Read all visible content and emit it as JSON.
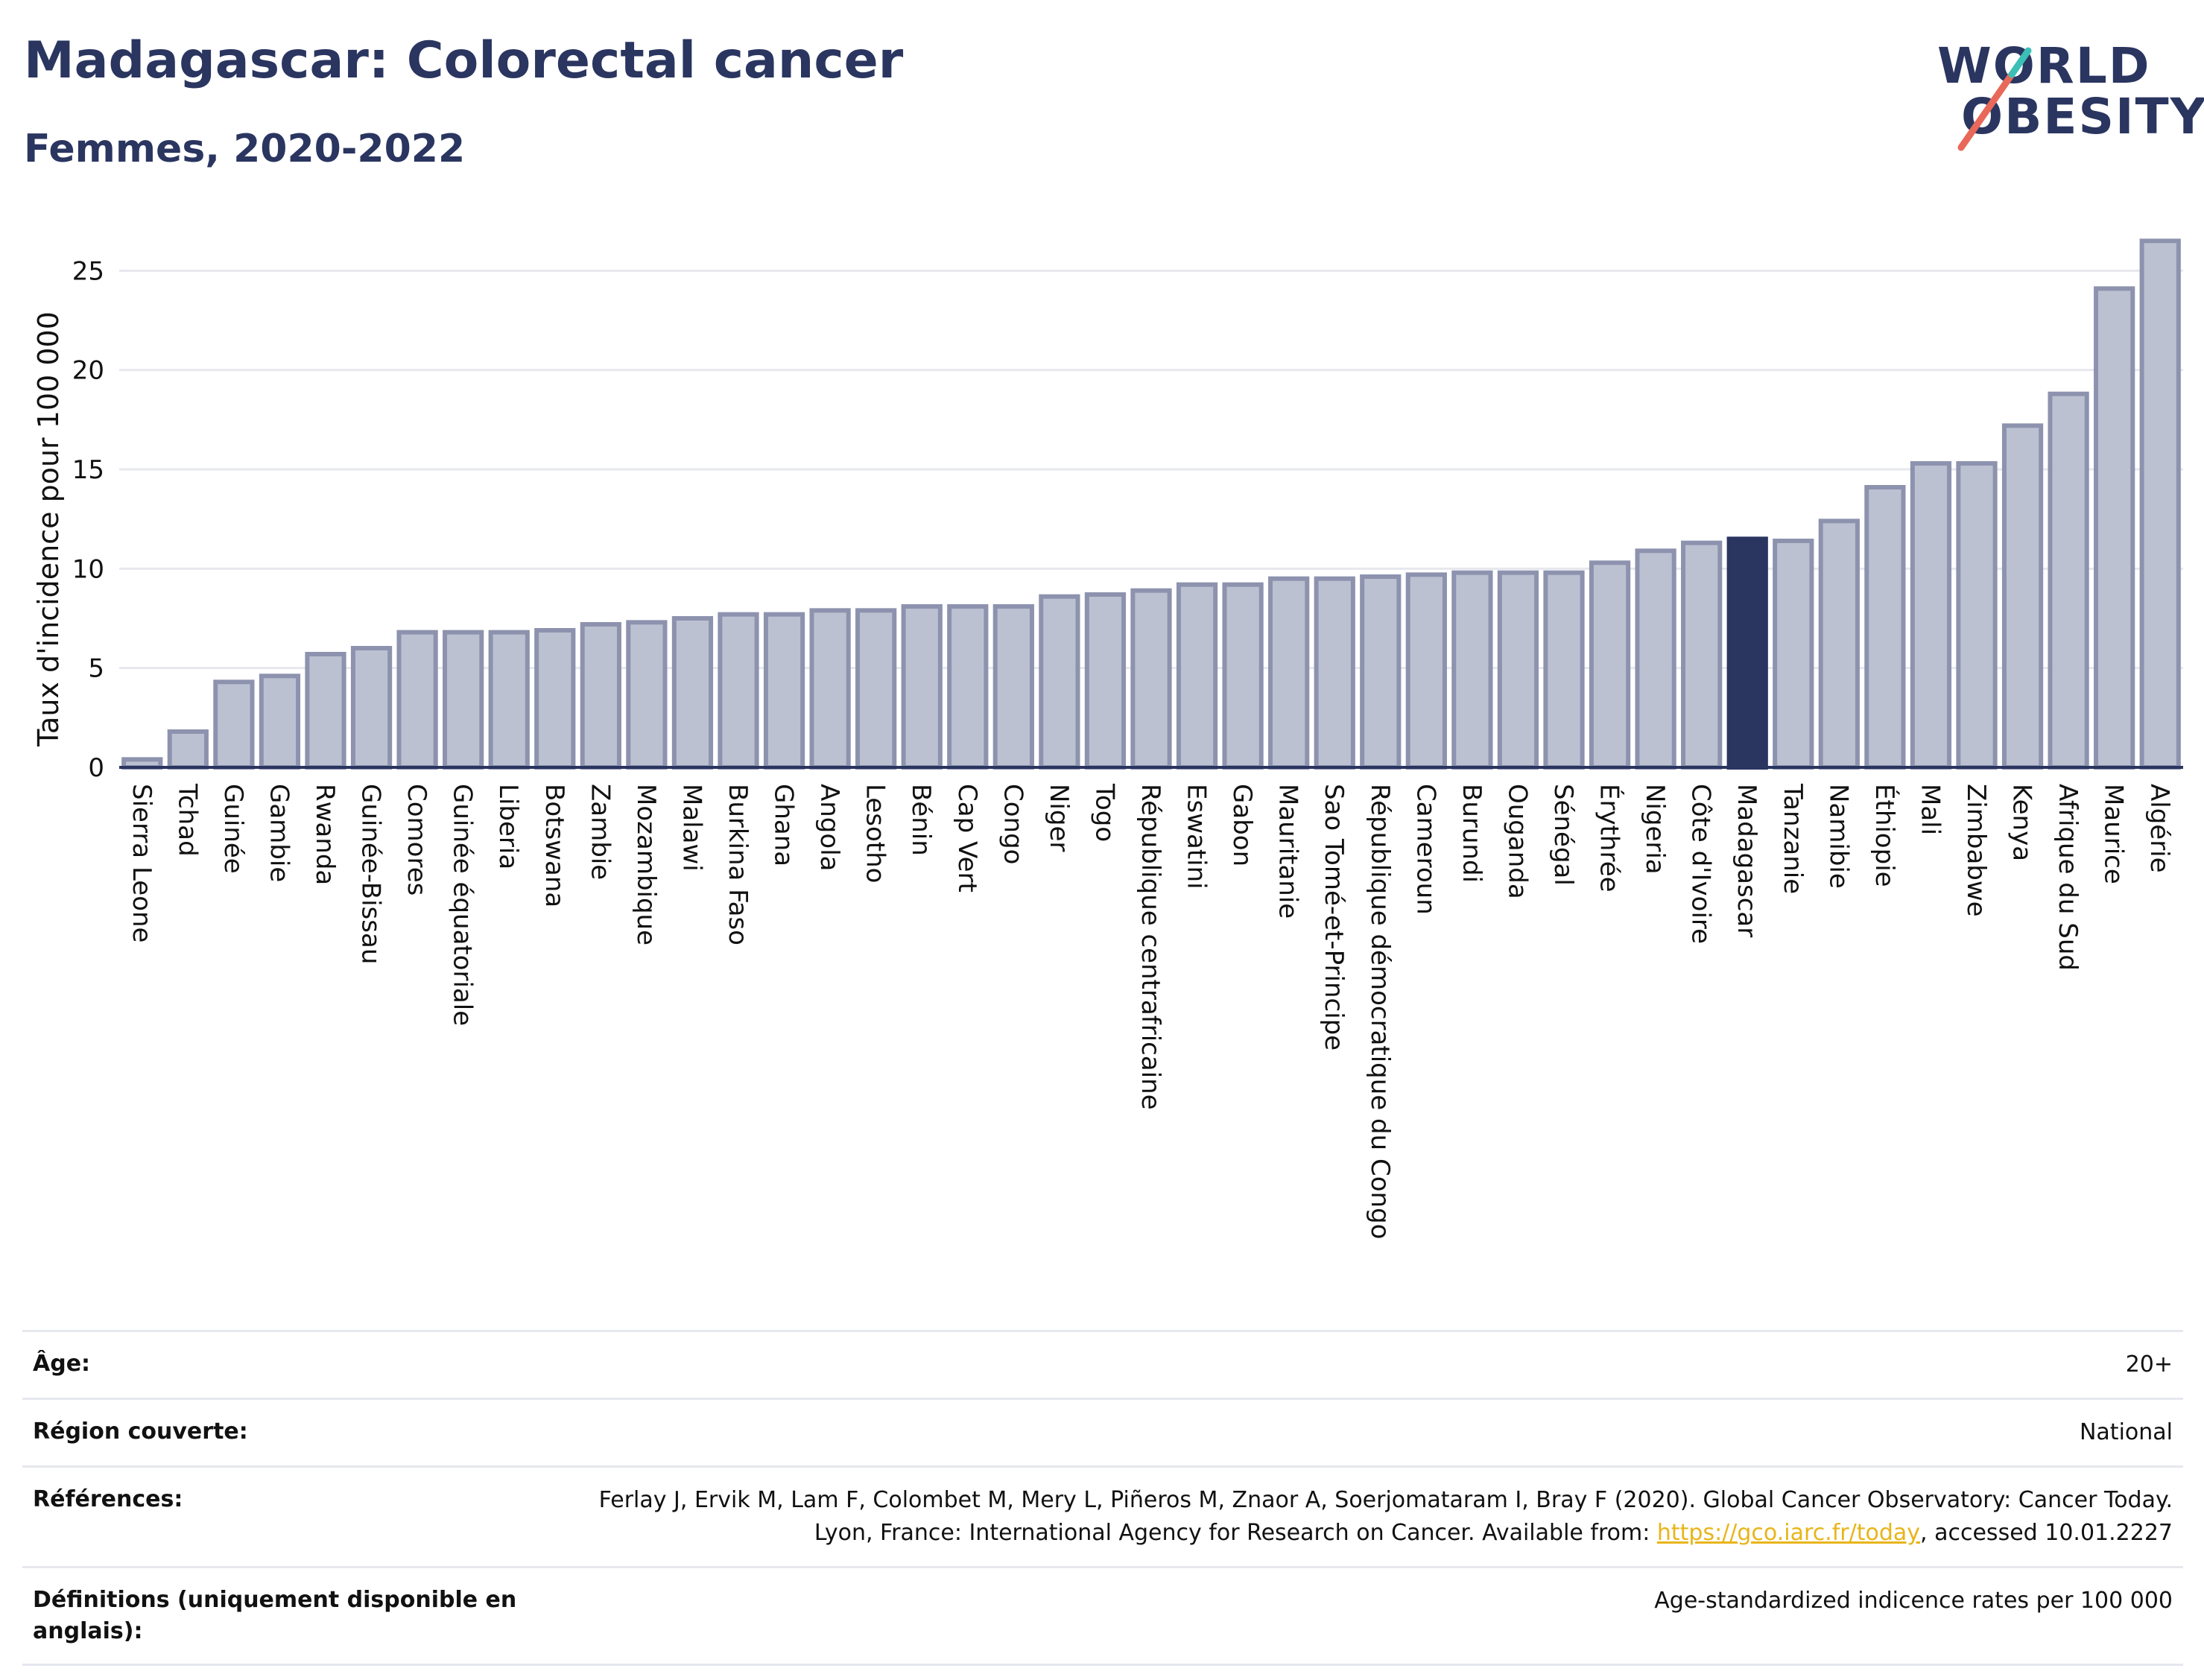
{
  "header": {
    "title": "Madagascar: Colorectal cancer",
    "subtitle": "Femmes, 2020-2022"
  },
  "logo": {
    "line1": "WORLD",
    "line2": "OBESITY",
    "accent_colors": [
      "#e8685a",
      "#3bbfb7"
    ]
  },
  "colors": {
    "bar": "#bcc1d1",
    "bar_border": "#8d93ae",
    "highlight": "#2a3560",
    "grid": "#e6e8ee",
    "text": "#111111"
  },
  "chart_data": {
    "type": "bar",
    "title": "Madagascar: Colorectal cancer",
    "subtitle": "Femmes, 2020-2022",
    "xlabel": "",
    "ylabel": "Taux d'incidence pour 100 000",
    "ylim": [
      0,
      27
    ],
    "yticks": [
      0,
      5,
      10,
      15,
      20,
      25
    ],
    "grid": true,
    "highlight": "Madagascar",
    "categories": [
      "Sierra Leone",
      "Tchad",
      "Guinée",
      "Gambie",
      "Rwanda",
      "Guinée-Bissau",
      "Comores",
      "Guinée équatoriale",
      "Liberia",
      "Botswana",
      "Zambie",
      "Mozambique",
      "Malawi",
      "Burkina Faso",
      "Ghana",
      "Angola",
      "Lesotho",
      "Bénin",
      "Cap Vert",
      "Congo",
      "Niger",
      "Togo",
      "République centrafricaine",
      "Eswatini",
      "Gabon",
      "Mauritanie",
      "Sao Tomé-et-Principe",
      "République démocratique du Congo",
      "Cameroun",
      "Burundi",
      "Ouganda",
      "Sénégal",
      "Érythrée",
      "Nigeria",
      "Côte d'Ivoire",
      "Madagascar",
      "Tanzanie",
      "Namibie",
      "Éthiopie",
      "Mali",
      "Zimbabwe",
      "Kenya",
      "Afrique du Sud",
      "Maurice",
      "Algérie"
    ],
    "values": [
      0.4,
      1.8,
      4.3,
      4.6,
      5.7,
      6.0,
      6.8,
      6.8,
      6.8,
      6.9,
      7.2,
      7.3,
      7.5,
      7.7,
      7.7,
      7.9,
      7.9,
      8.1,
      8.1,
      8.1,
      8.6,
      8.7,
      8.9,
      9.2,
      9.2,
      9.5,
      9.5,
      9.6,
      9.7,
      9.8,
      9.8,
      9.8,
      10.3,
      10.9,
      11.3,
      11.5,
      11.4,
      12.4,
      14.1,
      15.3,
      15.3,
      17.2,
      18.8,
      24.1,
      26.5
    ]
  },
  "meta": [
    {
      "key": "Âge:",
      "value": "20+"
    },
    {
      "key": "Région couverte:",
      "value": "National"
    },
    {
      "key": "Références:",
      "value": "Ferlay J, Ervik M, Lam F, Colombet M, Mery L, Piñeros M, Znaor A, Soerjomataram I, Bray F (2020). Global Cancer Observatory: Cancer Today. Lyon, France: International Agency for Research on Cancer. Available from: ",
      "link": "https://gco.iarc.fr/today",
      "suffix": ", accessed 10.01.2227"
    },
    {
      "key": "Définitions (uniquement disponible en anglais):",
      "value": "Age-standardized indicence rates per 100 000"
    }
  ]
}
